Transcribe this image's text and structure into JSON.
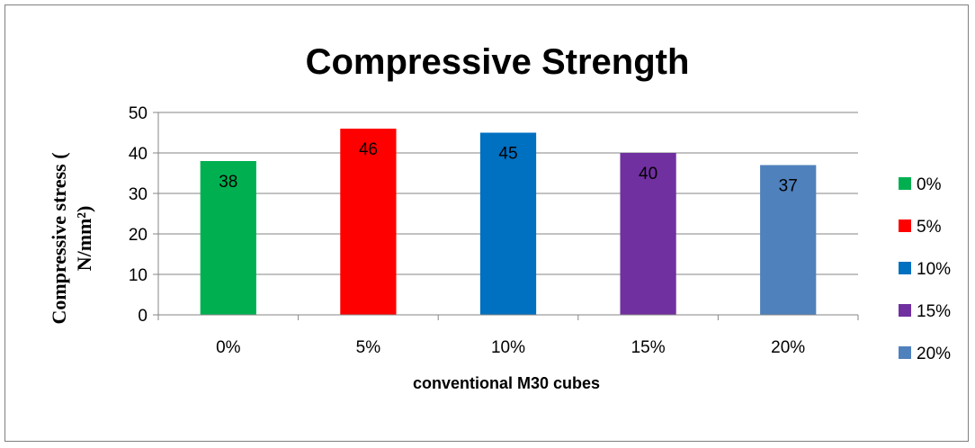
{
  "chart_data": {
    "type": "bar",
    "title": "Compressive Strength",
    "xlabel": "conventional M30 cubes",
    "ylabel_lines": [
      "Compressive stress (",
      "N/mm²)"
    ],
    "categories": [
      "0%",
      "5%",
      "10%",
      "15%",
      "20%"
    ],
    "values": [
      38,
      46,
      45,
      40,
      37
    ],
    "ylim": [
      0,
      50
    ],
    "yticks": [
      0,
      10,
      20,
      30,
      40,
      50
    ],
    "grid": true,
    "legend_position": "right",
    "legend": [
      {
        "label": "0%",
        "color": "#00b050"
      },
      {
        "label": "5%",
        "color": "#ff0000"
      },
      {
        "label": "10%",
        "color": "#0070c0"
      },
      {
        "label": "15%",
        "color": "#7030a0"
      },
      {
        "label": "20%",
        "color": "#4f81bd"
      }
    ],
    "colors": [
      "#00b050",
      "#ff0000",
      "#0070c0",
      "#7030a0",
      "#4f81bd"
    ]
  }
}
